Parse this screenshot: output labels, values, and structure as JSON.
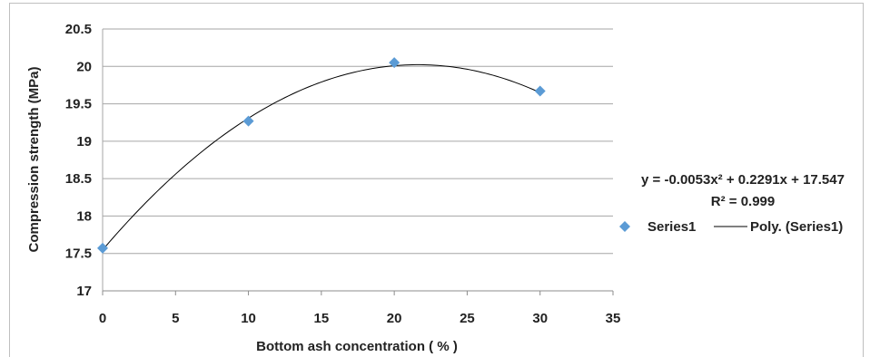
{
  "chart_data": {
    "type": "scatter",
    "xlabel": "Bottom ash concentration ( % )",
    "ylabel": "Compression strength (MPa)",
    "xlim": [
      0,
      35
    ],
    "ylim": [
      17,
      20.5
    ],
    "x_ticks": [
      0,
      5,
      10,
      15,
      20,
      25,
      30,
      35
    ],
    "y_ticks": [
      17,
      17.5,
      18,
      18.5,
      19,
      19.5,
      20,
      20.5
    ],
    "grid": "horizontal",
    "series": [
      {
        "name": "Series1",
        "marker": "diamond",
        "color": "#5b9bd5",
        "x": [
          0,
          10,
          20,
          30
        ],
        "y": [
          17.57,
          19.27,
          20.05,
          19.67
        ]
      }
    ],
    "trendline": {
      "name": "Poly. (Series1)",
      "type": "polynomial",
      "order": 2,
      "coefficients": {
        "a": -0.0053,
        "b": 0.2291,
        "c": 17.547
      },
      "x_range": [
        0,
        30
      ],
      "equation_label": "y = -0.0053x² + 0.2291x + 17.547",
      "r2_label": "R² = 0.999",
      "color": "#000000"
    },
    "legend": {
      "placement": "right",
      "entries": [
        "Series1",
        "Poly. (Series1)"
      ]
    }
  }
}
